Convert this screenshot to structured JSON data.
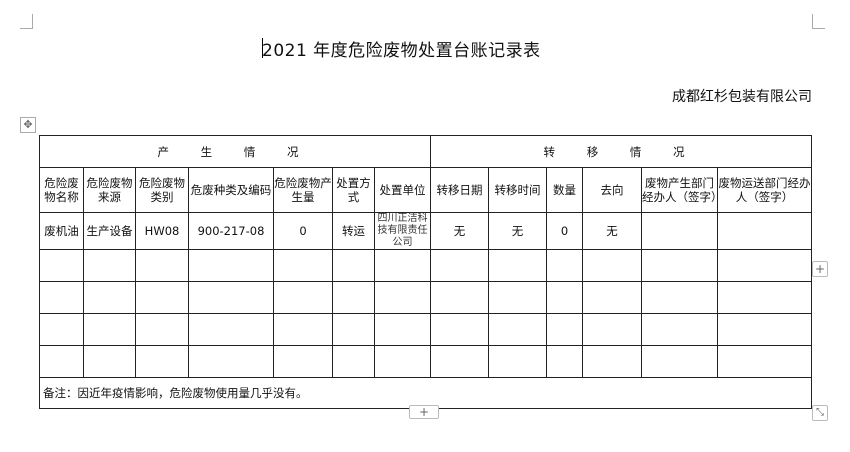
{
  "title": "2021 年度危险废物处置台账记录表",
  "company": "成都红杉包装有限公司",
  "sections": {
    "produce": "产 生 情 况",
    "transfer": "转 移 情 况"
  },
  "headers": [
    "危险废物名称",
    "危险废物来源",
    "危险废物类别",
    "危废种类及编码",
    "危险废物产生量",
    "处置方式",
    "处置单位",
    "转移日期",
    "转移时间",
    "数量",
    "去向",
    "废物产生部门经办人（签字）",
    "废物运送部门经办人（签字）"
  ],
  "rows": [
    [
      "废机油",
      "生产设备",
      "HW08",
      "900-217-08",
      "0",
      "转运",
      "四川正洁科技有限责任公司",
      "无",
      "无",
      "0",
      "无",
      "",
      ""
    ],
    [
      "",
      "",
      "",
      "",
      "",
      "",
      "",
      "",
      "",
      "",
      "",
      "",
      ""
    ],
    [
      "",
      "",
      "",
      "",
      "",
      "",
      "",
      "",
      "",
      "",
      "",
      "",
      ""
    ],
    [
      "",
      "",
      "",
      "",
      "",
      "",
      "",
      "",
      "",
      "",
      "",
      "",
      ""
    ],
    [
      "",
      "",
      "",
      "",
      "",
      "",
      "",
      "",
      "",
      "",
      "",
      "",
      ""
    ]
  ],
  "remark": "备注：因近年疫情影响，危险废物使用量几乎没有。",
  "icons": {
    "move": "move-handle-icon",
    "add_row": "plus-icon",
    "add_col": "plus-icon",
    "resize": "resize-icon"
  }
}
